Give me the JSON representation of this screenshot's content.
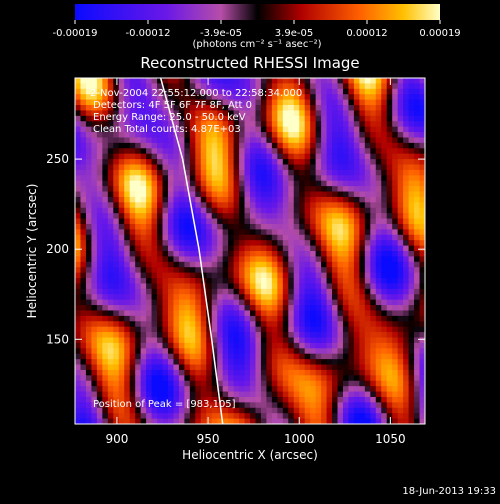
{
  "chart_data": {
    "type": "heatmap",
    "title": "Reconstructed RHESSI Image",
    "xlabel": "Heliocentric X (arcsec)",
    "ylabel": "Heliocentric Y (arcsec)",
    "xlim": [
      877,
      1069
    ],
    "ylim": [
      103,
      295
    ],
    "x_ticks": [
      900,
      950,
      1000,
      1050
    ],
    "y_ticks": [
      150,
      200,
      250
    ],
    "colorbar": {
      "min": -0.00019,
      "max": 0.00019,
      "tick_labels": [
        "-0.00019",
        "-0.00012",
        "-3.9e-05",
        "3.9e-05",
        "0.00012",
        "0.00019"
      ],
      "label": "(photons cm⁻² s⁻¹ asec⁻²)"
    },
    "annotations": [
      "2-Nov-2004 22:55:12.000 to 22:58:34.000",
      "Detectors: 4F 5F 6F 7F 8F, Att 0",
      "Energy Range: 25.0 - 50.0 keV",
      "Clean    Total counts: 4.87E+03"
    ],
    "peak_label": "Position of Peak = [983,105]",
    "peak_position": [
      983,
      105
    ],
    "limb_points": [
      [
        924,
        295
      ],
      [
        936,
        250
      ],
      [
        945,
        200
      ],
      [
        952,
        150
      ],
      [
        958,
        103
      ]
    ],
    "grid": false,
    "legend": "none"
  },
  "footer": {
    "timestamp": "18-Jun-2013 19:33"
  }
}
